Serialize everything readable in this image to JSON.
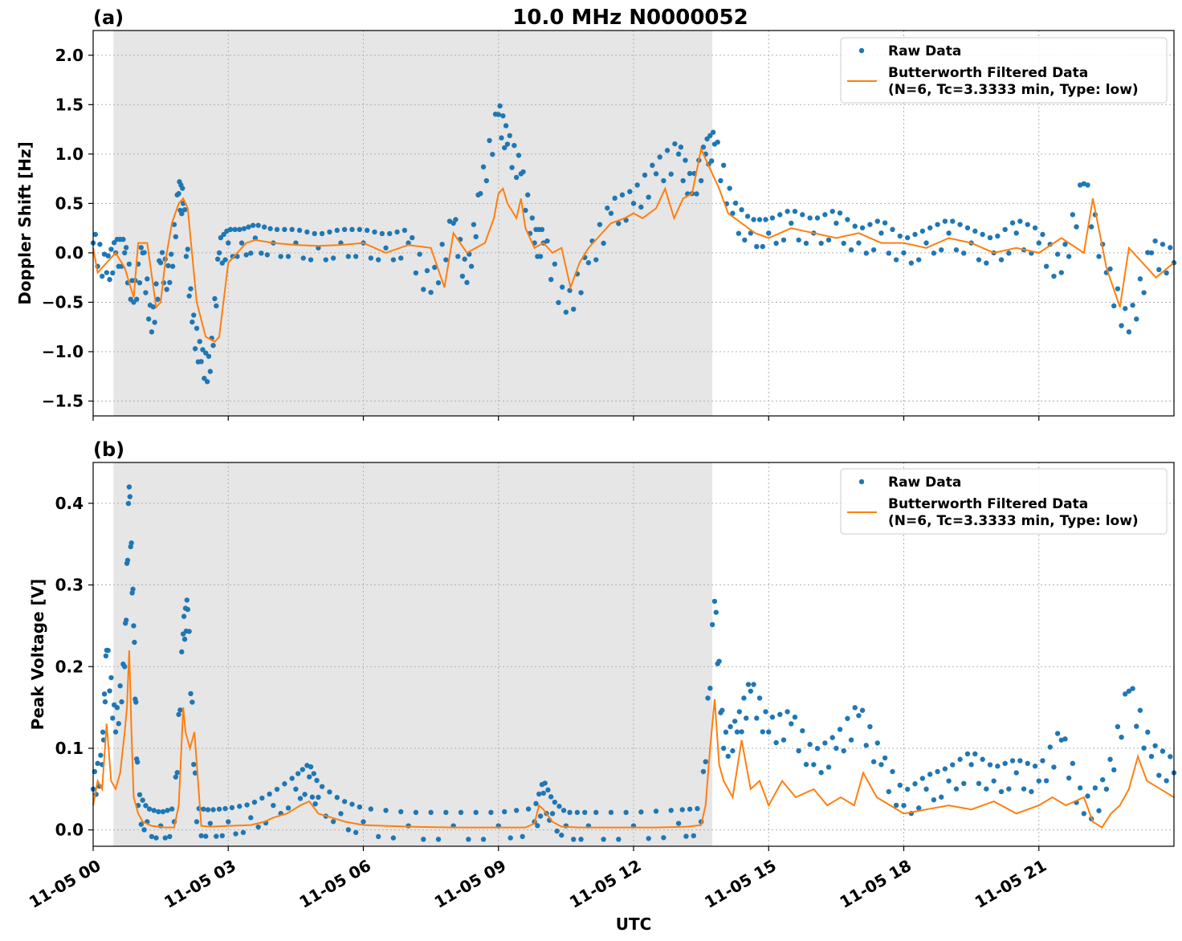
{
  "figure": {
    "title": "10.0 MHz N0000052",
    "xlabel": "UTC"
  },
  "colors": {
    "raw": "#1f77b4",
    "filtered": "#ff7f0e",
    "shade": "#e6e6e6",
    "grid": "#b0b0b0"
  },
  "x_ticks": [
    {
      "hour": 0,
      "label": "11-05 00"
    },
    {
      "hour": 3,
      "label": "11-05 03"
    },
    {
      "hour": 6,
      "label": "11-05 06"
    },
    {
      "hour": 9,
      "label": "11-05 09"
    },
    {
      "hour": 12,
      "label": "11-05 12"
    },
    {
      "hour": 15,
      "label": "11-05 15"
    },
    {
      "hour": 18,
      "label": "11-05 18"
    },
    {
      "hour": 21,
      "label": "11-05 21"
    }
  ],
  "legend": {
    "raw_label": "Raw Data",
    "filtered_label_line1": "Butterworth Filtered Data",
    "filtered_label_line2": "(N=6, Tc=3.3333 min, Type: low)"
  },
  "chart_data": [
    {
      "type": "scatter",
      "panel_label": "(a)",
      "ylabel": "Doppler Shift [Hz]",
      "xlim_hours": [
        0,
        24
      ],
      "ylim": [
        -1.65,
        2.25
      ],
      "yticks": [
        {
          "v": -1.5,
          "label": "−1.5"
        },
        {
          "v": -1.0,
          "label": "−1.0"
        },
        {
          "v": -0.5,
          "label": "−0.5"
        },
        {
          "v": 0.0,
          "label": "0.0"
        },
        {
          "v": 0.5,
          "label": "0.5"
        },
        {
          "v": 1.0,
          "label": "1.0"
        },
        {
          "v": 1.5,
          "label": "1.5"
        },
        {
          "v": 2.0,
          "label": "2.0"
        }
      ],
      "night_shade_hours": [
        0.45,
        13.75
      ],
      "grid": true,
      "legend_position": "upper right",
      "series": [
        {
          "name": "Raw Data",
          "style": "points",
          "x": [
            0,
            0.3,
            0.5,
            0.7,
            0.9,
            1.1,
            1.3,
            1.5,
            1.7,
            1.9,
            2.0,
            2.2,
            2.4,
            2.6,
            2.8,
            3.0,
            3.3,
            3.6,
            4.0,
            4.5,
            5.0,
            5.5,
            6.0,
            6.5,
            7.0,
            7.5,
            8.0,
            8.3,
            8.6,
            9.0,
            9.2,
            9.5,
            9.8,
            10.0,
            10.5,
            11.0,
            11.5,
            12.0,
            12.5,
            13.0,
            13.3,
            13.6,
            13.8,
            14.2,
            14.6,
            15.0,
            15.5,
            16.0,
            16.5,
            17.0,
            17.5,
            18.0,
            18.5,
            19.0,
            19.5,
            20.0,
            20.5,
            21.0,
            21.5,
            22.0,
            22.5,
            23.0,
            23.5,
            24.0
          ],
          "y": [
            0.1,
            -0.2,
            0.0,
            0.0,
            -0.5,
            0.0,
            -0.8,
            -0.1,
            -0.3,
            0.6,
            0.5,
            -0.7,
            -1.1,
            -1.2,
            0.0,
            0.1,
            0.1,
            0.15,
            0.1,
            0.1,
            0.05,
            0.1,
            0.1,
            0.05,
            0.1,
            -0.4,
            0.3,
            -0.3,
            0.6,
            1.4,
            1.1,
            0.8,
            0.1,
            0.1,
            -0.6,
            -0.1,
            0.4,
            0.5,
            0.8,
            1.0,
            0.6,
            1.0,
            1.1,
            0.4,
            0.2,
            0.2,
            0.3,
            0.2,
            0.3,
            0.1,
            0.2,
            0.0,
            0.1,
            0.2,
            0.1,
            0.0,
            0.2,
            0.1,
            -0.2,
            0.7,
            -0.2,
            -0.8,
            0.0,
            -0.1
          ]
        },
        {
          "name": "Butterworth Filtered Data\n(N=6, Tc=3.3333 min, Type: low)",
          "style": "line",
          "x": [
            0,
            0.1,
            0.2,
            0.3,
            0.5,
            0.7,
            0.8,
            0.9,
            1.0,
            1.2,
            1.4,
            1.5,
            1.6,
            1.75,
            1.9,
            2.0,
            2.1,
            2.3,
            2.5,
            2.7,
            2.8,
            3.0,
            3.2,
            3.4,
            3.6,
            4.0,
            4.5,
            5.0,
            5.5,
            6.0,
            6.5,
            7.0,
            7.5,
            7.8,
            8.0,
            8.3,
            8.5,
            8.7,
            8.9,
            9.0,
            9.1,
            9.2,
            9.4,
            9.5,
            9.6,
            9.8,
            10.0,
            10.2,
            10.4,
            10.6,
            10.8,
            11.0,
            11.2,
            11.5,
            11.8,
            12.0,
            12.2,
            12.5,
            12.7,
            12.9,
            13.1,
            13.3,
            13.5,
            13.7,
            13.9,
            14.1,
            14.4,
            14.7,
            15.0,
            15.5,
            16.0,
            16.5,
            17.0,
            17.5,
            18.0,
            18.5,
            19.0,
            19.5,
            20.0,
            20.5,
            21.0,
            21.5,
            22.0,
            22.2,
            22.5,
            22.8,
            23.0,
            23.3,
            23.6,
            24.0
          ],
          "y": [
            0.05,
            -0.2,
            -0.15,
            -0.1,
            0.0,
            -0.15,
            -0.3,
            -0.45,
            0.1,
            0.1,
            -0.55,
            -0.5,
            -0.1,
            0.3,
            0.5,
            0.55,
            0.45,
            -0.5,
            -0.85,
            -0.9,
            -0.85,
            -0.1,
            0.0,
            0.1,
            0.13,
            0.1,
            0.08,
            0.07,
            0.08,
            0.1,
            0.0,
            0.08,
            0.05,
            -0.35,
            0.2,
            0.0,
            0.05,
            0.1,
            0.35,
            0.6,
            0.65,
            0.5,
            0.35,
            0.55,
            0.25,
            0.05,
            0.1,
            0.0,
            0.05,
            -0.35,
            -0.1,
            0.05,
            0.15,
            0.3,
            0.35,
            0.4,
            0.35,
            0.45,
            0.65,
            0.35,
            0.55,
            0.6,
            1.05,
            0.85,
            0.65,
            0.4,
            0.3,
            0.2,
            0.15,
            0.25,
            0.2,
            0.15,
            0.2,
            0.1,
            0.1,
            0.05,
            0.15,
            0.1,
            0.0,
            0.05,
            0.0,
            0.15,
            0.0,
            0.55,
            -0.15,
            -0.55,
            0.05,
            -0.1,
            -0.25,
            -0.1
          ]
        }
      ]
    },
    {
      "type": "scatter",
      "panel_label": "(b)",
      "ylabel": "Peak Voltage [V]",
      "xlim_hours": [
        0,
        24
      ],
      "ylim": [
        -0.02,
        0.45
      ],
      "yticks": [
        {
          "v": 0.0,
          "label": "0.0"
        },
        {
          "v": 0.1,
          "label": "0.1"
        },
        {
          "v": 0.2,
          "label": "0.2"
        },
        {
          "v": 0.3,
          "label": "0.3"
        },
        {
          "v": 0.4,
          "label": "0.4"
        }
      ],
      "night_shade_hours": [
        0.45,
        13.75
      ],
      "grid": true,
      "legend_position": "upper right",
      "series": [
        {
          "name": "Raw Data",
          "style": "points",
          "x": [
            0,
            0.2,
            0.3,
            0.5,
            0.7,
            0.8,
            0.9,
            1.0,
            1.2,
            1.5,
            1.8,
            2.0,
            2.1,
            2.3,
            2.6,
            3.0,
            3.5,
            4.0,
            4.5,
            4.8,
            5.0,
            5.5,
            6.0,
            7.0,
            8.0,
            9.0,
            9.8,
            10.0,
            10.2,
            10.5,
            11.0,
            12.0,
            13.0,
            13.5,
            13.8,
            14.0,
            14.3,
            14.6,
            15.0,
            15.5,
            16.0,
            16.5,
            17.0,
            17.5,
            18.0,
            18.5,
            19.0,
            19.5,
            20.0,
            20.5,
            21.0,
            21.5,
            22.0,
            22.5,
            23.0,
            23.5,
            24.0
          ],
          "y": [
            0.05,
            0.08,
            0.22,
            0.12,
            0.2,
            0.42,
            0.25,
            0.03,
            0.01,
            0.005,
            0.01,
            0.24,
            0.27,
            0.01,
            0.008,
            0.01,
            0.015,
            0.03,
            0.05,
            0.065,
            0.04,
            0.02,
            0.01,
            0.005,
            0.005,
            0.005,
            0.01,
            0.045,
            0.02,
            0.005,
            0.005,
            0.005,
            0.008,
            0.01,
            0.28,
            0.1,
            0.12,
            0.17,
            0.12,
            0.13,
            0.08,
            0.1,
            0.14,
            0.08,
            0.03,
            0.05,
            0.06,
            0.08,
            0.06,
            0.07,
            0.06,
            0.11,
            0.02,
            0.05,
            0.17,
            0.09,
            0.07
          ]
        },
        {
          "name": "Butterworth Filtered Data\n(N=6, Tc=3.3333 min, Type: low)",
          "style": "line",
          "x": [
            0,
            0.1,
            0.2,
            0.3,
            0.4,
            0.5,
            0.6,
            0.7,
            0.75,
            0.8,
            0.85,
            0.9,
            1.0,
            1.1,
            1.3,
            1.6,
            1.8,
            1.9,
            2.0,
            2.05,
            2.15,
            2.25,
            2.4,
            2.6,
            3.0,
            3.5,
            3.8,
            4.0,
            4.3,
            4.6,
            4.8,
            5.0,
            5.3,
            5.6,
            6.0,
            6.5,
            7.0,
            8.0,
            9.0,
            9.6,
            9.8,
            9.9,
            10.0,
            10.2,
            10.4,
            10.8,
            11.5,
            12.5,
            13.2,
            13.5,
            13.6,
            13.7,
            13.8,
            13.9,
            14.0,
            14.2,
            14.4,
            14.6,
            14.8,
            15.0,
            15.3,
            15.6,
            16.0,
            16.3,
            16.6,
            16.9,
            17.1,
            17.4,
            17.7,
            18.0,
            18.5,
            19.0,
            19.5,
            20.0,
            20.5,
            21.0,
            21.3,
            21.6,
            22.0,
            22.2,
            22.4,
            22.6,
            22.8,
            23.0,
            23.2,
            23.4,
            23.7,
            24.0
          ],
          "y": [
            0.03,
            0.06,
            0.05,
            0.13,
            0.06,
            0.05,
            0.07,
            0.12,
            0.15,
            0.22,
            0.12,
            0.04,
            0.02,
            0.01,
            0.005,
            0.003,
            0.003,
            0.03,
            0.15,
            0.12,
            0.1,
            0.12,
            0.005,
            0.004,
            0.005,
            0.006,
            0.01,
            0.015,
            0.02,
            0.03,
            0.035,
            0.02,
            0.015,
            0.01,
            0.006,
            0.005,
            0.004,
            0.003,
            0.003,
            0.003,
            0.008,
            0.03,
            0.025,
            0.01,
            0.004,
            0.003,
            0.003,
            0.003,
            0.004,
            0.006,
            0.03,
            0.1,
            0.16,
            0.08,
            0.06,
            0.04,
            0.11,
            0.05,
            0.06,
            0.03,
            0.06,
            0.04,
            0.05,
            0.03,
            0.04,
            0.03,
            0.07,
            0.04,
            0.03,
            0.02,
            0.025,
            0.03,
            0.025,
            0.035,
            0.02,
            0.03,
            0.04,
            0.03,
            0.04,
            0.01,
            0.003,
            0.02,
            0.03,
            0.05,
            0.09,
            0.06,
            0.05,
            0.04
          ]
        }
      ]
    }
  ]
}
